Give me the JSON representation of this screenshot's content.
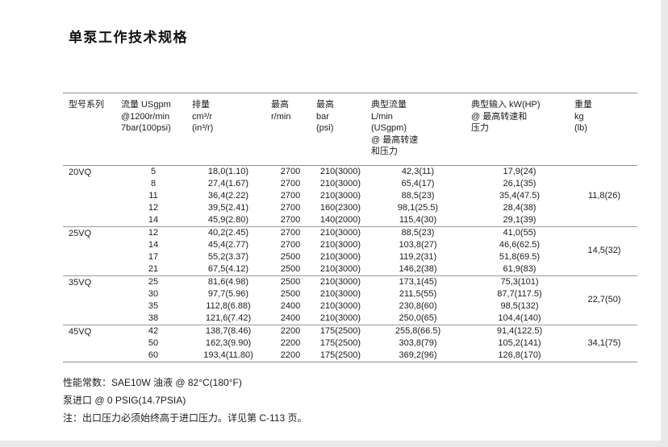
{
  "page": {
    "title": "单泵工作技术规格"
  },
  "table": {
    "headers": [
      "型号系列",
      "流量 USgpm\n@1200r/min\n7bar(100psi)",
      "排量\ncm³/r\n(in³/r)",
      "最高\nr/min",
      "最高\nbar\n(psi)",
      "典型流量\nL/min\n(USgpm)\n@ 最高转速\n和压力",
      "典型输入 kW(HP)\n@ 最高转速和\n压力",
      "重量\nkg\n(lb)"
    ],
    "groups": [
      {
        "model": "20VQ",
        "weight": "11,8(26)",
        "rows": [
          [
            "5",
            "18,0(1.10)",
            "2700",
            "210(3000)",
            "42,3(11)",
            "17,9(24)"
          ],
          [
            "8",
            "27,4(1.67)",
            "2700",
            "210(3000)",
            "65,4(17)",
            "26,1(35)"
          ],
          [
            "11",
            "36,4(2.22)",
            "2700",
            "210(3000)",
            "88,5(23)",
            "35,4(47.5)"
          ],
          [
            "12",
            "39,5(2.41)",
            "2700",
            "160(2300)",
            "98,1(25.5)",
            "28,4(38)"
          ],
          [
            "14",
            "45,9(2.80)",
            "2700",
            "140(2000)",
            "115,4(30)",
            "29,1(39)"
          ]
        ]
      },
      {
        "model": "25VQ",
        "weight": "14,5(32)",
        "rows": [
          [
            "12",
            "40,2(2.45)",
            "2700",
            "210(3000)",
            "88,5(23)",
            "41,0(55)"
          ],
          [
            "14",
            "45,4(2.77)",
            "2700",
            "210(3000)",
            "103,8(27)",
            "46,6(62.5)"
          ],
          [
            "17",
            "55,2(3.37)",
            "2500",
            "210(3000)",
            "119,2(31)",
            "51,8(69.5)"
          ],
          [
            "21",
            "67,5(4.12)",
            "2500",
            "210(3000)",
            "146,2(38)",
            "61,9(83)"
          ]
        ]
      },
      {
        "model": "35VQ",
        "weight": "22,7(50)",
        "rows": [
          [
            "25",
            "81,6(4.98)",
            "2500",
            "210(3000)",
            "173,1(45)",
            "75,3(101)"
          ],
          [
            "30",
            "97,7(5.96)",
            "2500",
            "210(3000)",
            "211,5(55)",
            "87,7(117.5)"
          ],
          [
            "35",
            "112,8(6.88)",
            "2400",
            "210(3000)",
            "230,8(60)",
            "98,5(132)"
          ],
          [
            "38",
            "121,6(7.42)",
            "2400",
            "210(3000)",
            "250,0(65)",
            "104,4(140)"
          ]
        ]
      },
      {
        "model": "45VQ",
        "weight": "34,1(75)",
        "rows": [
          [
            "42",
            "138,7(8.46)",
            "2200",
            "175(2500)",
            "255,8(66.5)",
            "91,4(122.5)"
          ],
          [
            "50",
            "162,3(9.90)",
            "2200",
            "175(2500)",
            "303,8(79)",
            "105,2(141)"
          ],
          [
            "60",
            "193,4(11.80)",
            "2200",
            "175(2500)",
            "369,2(96)",
            "126,8(170)"
          ]
        ]
      }
    ]
  },
  "footer": {
    "notes": [
      "性能常数：SAE10W 油液 @ 82°C(180°F)",
      "泵进口 @ 0 PSIG(14.7PSIA)",
      "注：出口压力必须始终高于进口压力。详见第 C-113 页。"
    ]
  }
}
